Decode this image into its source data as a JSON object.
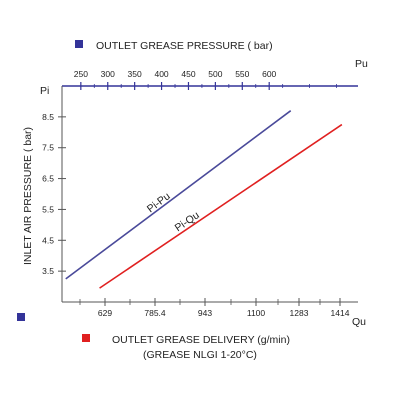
{
  "chart_data": {
    "type": "line",
    "top_legend": {
      "label": "OUTLET GREASE PRESSURE ( bar)",
      "color": "#333399"
    },
    "bottom_legend": {
      "label_line1": "OUTLET GREASE DELIVERY (g/min)",
      "label_line2": "(GREASE NLGI 1-20°C)",
      "color": "#e02020"
    },
    "y_axis": {
      "label": "INLET AIR PRESSURE ( bar)",
      "symbol": "Pi",
      "ticks": [
        3.5,
        4.5,
        5.5,
        6.5,
        7.5,
        8.5
      ],
      "tick_labels": [
        "3.5",
        "4.5",
        "5.5",
        "6.5",
        "7.5",
        "8.5"
      ],
      "range": [
        2.5,
        9.5
      ]
    },
    "top_x_axis": {
      "symbol": "Pu",
      "ticks": [
        250,
        300,
        350,
        400,
        450,
        500,
        550,
        600
      ],
      "tick_labels": [
        "250",
        "300",
        "350",
        "400",
        "450",
        "500",
        "550",
        "600"
      ],
      "range": [
        215,
        765
      ]
    },
    "bottom_x_axis": {
      "symbol": "Qu",
      "ticks": [
        629,
        785.4,
        943,
        1100,
        1283,
        1414
      ],
      "tick_labels": [
        "629",
        "785.4",
        "943",
        "1100",
        "1283",
        "1414"
      ]
    },
    "series": [
      {
        "name": "Pi-Pu",
        "axis": "top",
        "color": "#4a4a9a",
        "points": [
          [
            222,
            3.25
          ],
          [
            640,
            8.7
          ]
        ]
      },
      {
        "name": "Pi-Qu",
        "axis": "bottom",
        "color": "#e02020",
        "points": [
          [
            612,
            2.95
          ],
          [
            1420,
            8.25
          ]
        ]
      }
    ],
    "grid": false
  }
}
